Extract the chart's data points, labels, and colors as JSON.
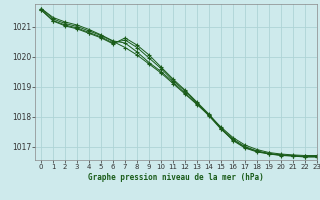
{
  "title": "Graphe pression niveau de la mer (hPa)",
  "background_color": "#ceeaec",
  "grid_color": "#aed4d6",
  "line_color": "#1a5c1a",
  "marker_color": "#1a5c1a",
  "xlim": [
    -0.5,
    23
  ],
  "ylim": [
    1016.55,
    1021.75
  ],
  "yticks": [
    1017,
    1018,
    1019,
    1020,
    1021
  ],
  "xticks": [
    0,
    1,
    2,
    3,
    4,
    5,
    6,
    7,
    8,
    9,
    10,
    11,
    12,
    13,
    14,
    15,
    16,
    17,
    18,
    19,
    20,
    21,
    22,
    23
  ],
  "series": [
    [
      1021.6,
      1021.25,
      1021.1,
      1021.0,
      1020.85,
      1020.7,
      1020.5,
      1020.3,
      1020.05,
      1019.75,
      1019.45,
      1019.1,
      1018.75,
      1018.4,
      1018.05,
      1017.65,
      1017.3,
      1017.05,
      1016.9,
      1016.8,
      1016.75,
      1016.72,
      1016.7,
      1016.7
    ],
    [
      1021.55,
      1021.2,
      1021.05,
      1020.95,
      1020.8,
      1020.65,
      1020.45,
      1020.55,
      1020.3,
      1019.95,
      1019.6,
      1019.2,
      1018.85,
      1018.45,
      1018.05,
      1017.6,
      1017.2,
      1016.95,
      1016.82,
      1016.75,
      1016.7,
      1016.68,
      1016.65,
      1016.65
    ],
    [
      1021.6,
      1021.3,
      1021.15,
      1021.05,
      1020.9,
      1020.72,
      1020.52,
      1020.45,
      1020.15,
      1019.8,
      1019.5,
      1019.15,
      1018.78,
      1018.42,
      1018.02,
      1017.58,
      1017.22,
      1016.97,
      1016.84,
      1016.76,
      1016.71,
      1016.69,
      1016.66,
      1016.66
    ],
    [
      1021.55,
      1021.18,
      1021.02,
      1020.92,
      1020.77,
      1020.62,
      1020.42,
      1020.62,
      1020.38,
      1020.05,
      1019.65,
      1019.25,
      1018.88,
      1018.48,
      1018.08,
      1017.62,
      1017.25,
      1017.0,
      1016.85,
      1016.77,
      1016.72,
      1016.7,
      1016.67,
      1016.67
    ]
  ]
}
